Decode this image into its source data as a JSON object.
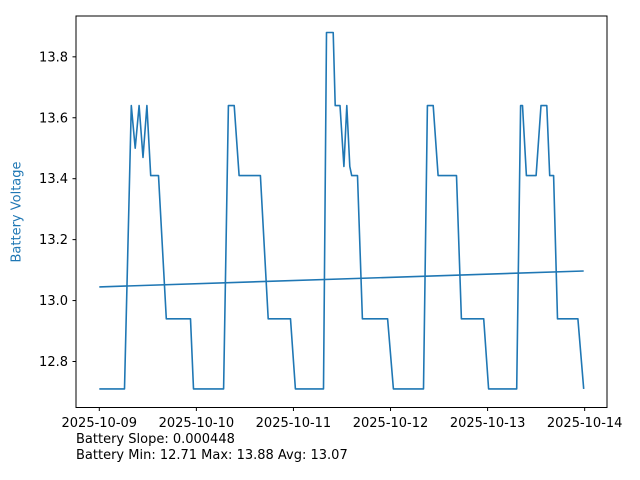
{
  "chart_data": {
    "type": "line",
    "title": "",
    "xlabel": "",
    "ylabel": "Battery Voltage",
    "x_unit": "days since 2025-10-09",
    "xlim": [
      -0.24,
      5.23
    ],
    "ylim": [
      12.649,
      13.934
    ],
    "grid": false,
    "legend": "none",
    "line_color": "#1f77b4",
    "trend_color": "#1f77b4",
    "ylabel_color": "#1f77b4",
    "x_ticks": [
      {
        "day": 0,
        "label": "2025-10-09"
      },
      {
        "day": 1,
        "label": "2025-10-10"
      },
      {
        "day": 2,
        "label": "2025-10-11"
      },
      {
        "day": 3,
        "label": "2025-10-12"
      },
      {
        "day": 4,
        "label": "2025-10-13"
      },
      {
        "day": 5,
        "label": "2025-10-14"
      }
    ],
    "y_ticks": [
      {
        "value": 12.8,
        "label": "12.8"
      },
      {
        "value": 13.0,
        "label": "13.0"
      },
      {
        "value": 13.2,
        "label": "13.2"
      },
      {
        "value": 13.4,
        "label": "13.4"
      },
      {
        "value": 13.6,
        "label": "13.6"
      },
      {
        "value": 13.8,
        "label": "13.8"
      }
    ],
    "series": [
      {
        "name": "battery_voltage",
        "points": [
          [
            0.0,
            12.71
          ],
          [
            0.26,
            12.71
          ],
          [
            0.33,
            13.64
          ],
          [
            0.37,
            13.5
          ],
          [
            0.41,
            13.64
          ],
          [
            0.45,
            13.47
          ],
          [
            0.49,
            13.64
          ],
          [
            0.53,
            13.41
          ],
          [
            0.61,
            13.41
          ],
          [
            0.69,
            12.94
          ],
          [
            0.94,
            12.94
          ],
          [
            0.97,
            12.71
          ],
          [
            1.28,
            12.71
          ],
          [
            1.33,
            13.64
          ],
          [
            1.39,
            13.64
          ],
          [
            1.44,
            13.41
          ],
          [
            1.66,
            13.41
          ],
          [
            1.74,
            12.94
          ],
          [
            1.97,
            12.94
          ],
          [
            2.02,
            12.71
          ],
          [
            2.31,
            12.71
          ],
          [
            2.34,
            13.88
          ],
          [
            2.41,
            13.88
          ],
          [
            2.43,
            13.64
          ],
          [
            2.48,
            13.64
          ],
          [
            2.52,
            13.44
          ],
          [
            2.55,
            13.64
          ],
          [
            2.58,
            13.44
          ],
          [
            2.6,
            13.41
          ],
          [
            2.66,
            13.41
          ],
          [
            2.71,
            12.94
          ],
          [
            2.97,
            12.94
          ],
          [
            3.03,
            12.71
          ],
          [
            3.34,
            12.71
          ],
          [
            3.38,
            13.64
          ],
          [
            3.44,
            13.64
          ],
          [
            3.49,
            13.41
          ],
          [
            3.68,
            13.41
          ],
          [
            3.73,
            12.94
          ],
          [
            3.96,
            12.94
          ],
          [
            4.01,
            12.71
          ],
          [
            4.3,
            12.71
          ],
          [
            4.34,
            13.64
          ],
          [
            4.36,
            13.64
          ],
          [
            4.4,
            13.41
          ],
          [
            4.5,
            13.41
          ],
          [
            4.55,
            13.64
          ],
          [
            4.61,
            13.64
          ],
          [
            4.64,
            13.41
          ],
          [
            4.68,
            13.41
          ],
          [
            4.72,
            12.94
          ],
          [
            4.93,
            12.94
          ],
          [
            4.99,
            12.71
          ]
        ]
      },
      {
        "name": "trend",
        "points": [
          [
            0.0,
            13.045
          ],
          [
            4.99,
            13.097
          ]
        ]
      }
    ],
    "stats": {
      "slope": "0.000448",
      "min": "12.71",
      "max": "13.88",
      "avg": "13.07"
    },
    "annotations": [
      "Battery Slope: 0.000448",
      "Battery Min: 12.71 Max: 13.88 Avg: 13.07"
    ]
  }
}
